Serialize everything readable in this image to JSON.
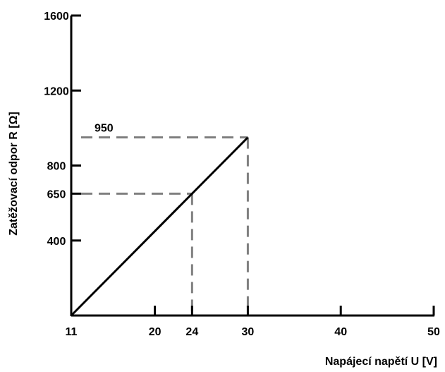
{
  "chart_data": {
    "type": "line",
    "xlabel": "Napájecí napětí U [V]",
    "ylabel": "Zatěžovací odpor R [Ω]",
    "xlim": [
      11,
      50
    ],
    "ylim": [
      0,
      1600
    ],
    "x_ticks": [
      {
        "value": 11,
        "label": "11"
      },
      {
        "value": 20,
        "label": "20"
      },
      {
        "value": 24,
        "label": "24"
      },
      {
        "value": 30,
        "label": "30"
      },
      {
        "value": 40,
        "label": "40"
      },
      {
        "value": 50,
        "label": "50"
      }
    ],
    "y_ticks": [
      {
        "value": 400,
        "label": "400"
      },
      {
        "value": 650,
        "label": "650"
      },
      {
        "value": 800,
        "label": "800"
      },
      {
        "value": 1200,
        "label": "1200"
      },
      {
        "value": 1600,
        "label": "1600"
      }
    ],
    "series": [
      {
        "x": [
          11,
          30
        ],
        "y": [
          0,
          950
        ],
        "color": "#000000"
      }
    ],
    "guides": [
      {
        "x": 24,
        "y": 650,
        "color": "#808080"
      },
      {
        "x": 30,
        "y": 950,
        "color": "#808080"
      }
    ],
    "annotations": [
      {
        "text": "950",
        "x": 13.5,
        "y": 950
      }
    ],
    "grid": false,
    "legend": "none"
  }
}
